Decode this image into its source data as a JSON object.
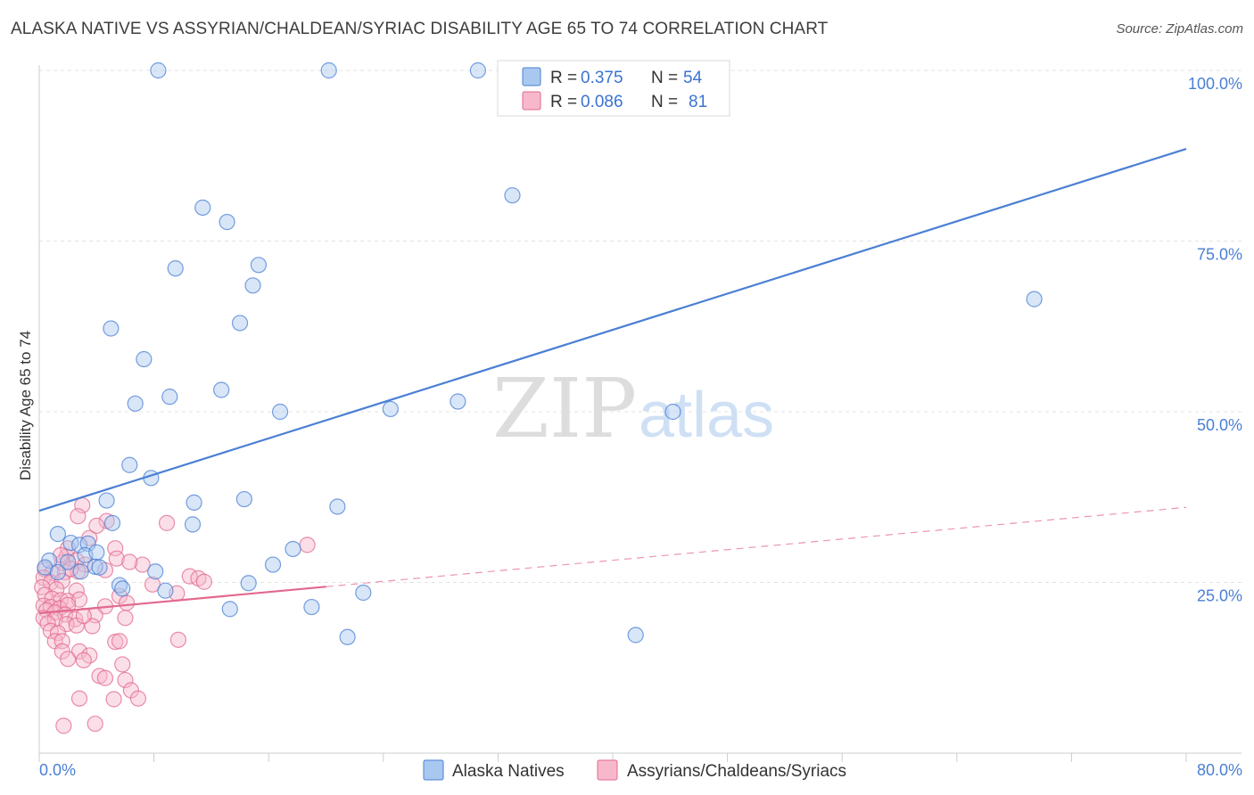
{
  "header": {
    "title": "ALASKA NATIVE VS ASSYRIAN/CHALDEAN/SYRIAC DISABILITY AGE 65 TO 74 CORRELATION CHART",
    "source": "Source: ZipAtlas.com"
  },
  "watermark": {
    "zip": "ZIP",
    "atlas": "atlas"
  },
  "legend": {
    "r_label": "R =",
    "n_label": "N =",
    "rows": [
      {
        "r": "0.375",
        "n": "54",
        "color": "#a9c8f0"
      },
      {
        "r": "0.086",
        "n": "81",
        "color": "#f7b8cb"
      }
    ]
  },
  "chart_data": {
    "type": "scatter",
    "title": "ALASKA NATIVE VS ASSYRIAN/CHALDEAN/SYRIAC DISABILITY AGE 65 TO 74 CORRELATION CHART",
    "ylabel": "Disability Age 65 to 74",
    "xlabel": "",
    "xlim": [
      0,
      80
    ],
    "ylim": [
      0,
      100
    ],
    "x_tick_labels": [
      "0.0%",
      "80.0%"
    ],
    "y_ticks": [
      25,
      50,
      75,
      100
    ],
    "y_tick_labels": [
      "25.0%",
      "50.0%",
      "75.0%",
      "100.0%"
    ],
    "grid": "horizontal dashed",
    "legend_position": "top-center",
    "series": [
      {
        "name": "Alaska Natives",
        "color": "#4a7fd4",
        "fill": "#a9c8f0",
        "r": 0.375,
        "n": 54,
        "trend": {
          "x": [
            0,
            80
          ],
          "y": [
            35.5,
            88.5
          ],
          "style": "solid"
        },
        "points": [
          [
            8.3,
            100
          ],
          [
            20.2,
            100
          ],
          [
            30.6,
            100
          ],
          [
            44.6,
            100
          ],
          [
            33.0,
            81.7
          ],
          [
            11.4,
            79.9
          ],
          [
            13.1,
            77.8
          ],
          [
            9.5,
            71.0
          ],
          [
            15.3,
            71.5
          ],
          [
            14.9,
            68.5
          ],
          [
            69.4,
            66.5
          ],
          [
            14.0,
            63.0
          ],
          [
            5.0,
            62.2
          ],
          [
            7.3,
            57.7
          ],
          [
            12.7,
            53.2
          ],
          [
            9.1,
            52.2
          ],
          [
            6.7,
            51.2
          ],
          [
            16.8,
            50.0
          ],
          [
            24.5,
            50.4
          ],
          [
            29.2,
            51.5
          ],
          [
            44.2,
            50.0
          ],
          [
            6.3,
            42.2
          ],
          [
            7.8,
            40.3
          ],
          [
            4.7,
            37.0
          ],
          [
            10.8,
            36.7
          ],
          [
            14.3,
            37.2
          ],
          [
            20.8,
            36.1
          ],
          [
            5.1,
            33.7
          ],
          [
            10.7,
            33.5
          ],
          [
            1.3,
            32.1
          ],
          [
            2.2,
            30.8
          ],
          [
            2.8,
            30.5
          ],
          [
            3.4,
            30.7
          ],
          [
            3.2,
            29.0
          ],
          [
            4.0,
            29.4
          ],
          [
            17.7,
            29.9
          ],
          [
            0.7,
            28.2
          ],
          [
            0.4,
            27.2
          ],
          [
            3.9,
            27.3
          ],
          [
            4.2,
            27.2
          ],
          [
            1.3,
            26.5
          ],
          [
            2.9,
            26.6
          ],
          [
            8.1,
            26.6
          ],
          [
            16.3,
            27.6
          ],
          [
            5.6,
            24.6
          ],
          [
            5.8,
            24.1
          ],
          [
            8.8,
            23.8
          ],
          [
            14.6,
            24.9
          ],
          [
            22.6,
            23.5
          ],
          [
            13.3,
            21.1
          ],
          [
            19.0,
            21.4
          ],
          [
            21.5,
            17.0
          ],
          [
            41.6,
            17.3
          ],
          [
            2.0,
            28.0
          ]
        ]
      },
      {
        "name": "Assyrians/Chaldeans/Syriacs",
        "color": "#e2698e",
        "fill": "#f7b8cb",
        "r": 0.086,
        "n": 81,
        "trend": {
          "x": [
            0,
            80
          ],
          "y": [
            20.5,
            36.0
          ],
          "style": "solid to x=20, dashed after"
        },
        "points": [
          [
            3.0,
            36.3
          ],
          [
            4.7,
            34.0
          ],
          [
            2.7,
            34.7
          ],
          [
            8.9,
            33.7
          ],
          [
            18.7,
            30.5
          ],
          [
            5.3,
            30.0
          ],
          [
            1.9,
            28.8
          ],
          [
            2.6,
            28.2
          ],
          [
            5.4,
            28.5
          ],
          [
            1.6,
            27.9
          ],
          [
            3.2,
            27.6
          ],
          [
            7.2,
            27.6
          ],
          [
            0.4,
            26.9
          ],
          [
            0.9,
            26.4
          ],
          [
            1.8,
            26.5
          ],
          [
            2.7,
            26.6
          ],
          [
            4.6,
            26.8
          ],
          [
            0.3,
            25.7
          ],
          [
            0.8,
            25.0
          ],
          [
            1.6,
            25.2
          ],
          [
            10.5,
            25.9
          ],
          [
            11.1,
            25.6
          ],
          [
            11.5,
            25.1
          ],
          [
            0.2,
            24.3
          ],
          [
            1.2,
            24.0
          ],
          [
            2.6,
            23.8
          ],
          [
            9.6,
            23.4
          ],
          [
            0.4,
            23.2
          ],
          [
            0.9,
            22.6
          ],
          [
            1.5,
            22.4
          ],
          [
            2.0,
            22.3
          ],
          [
            2.8,
            22.5
          ],
          [
            5.6,
            23.0
          ],
          [
            0.3,
            21.6
          ],
          [
            0.8,
            21.4
          ],
          [
            1.4,
            21.2
          ],
          [
            2.0,
            21.7
          ],
          [
            4.6,
            21.5
          ],
          [
            0.5,
            20.9
          ],
          [
            1.1,
            20.6
          ],
          [
            1.8,
            20.3
          ],
          [
            3.9,
            20.2
          ],
          [
            0.3,
            19.8
          ],
          [
            1.1,
            19.6
          ],
          [
            2.5,
            19.6
          ],
          [
            6.0,
            19.8
          ],
          [
            0.6,
            19.0
          ],
          [
            1.9,
            18.9
          ],
          [
            2.6,
            18.7
          ],
          [
            3.7,
            18.6
          ],
          [
            0.8,
            17.9
          ],
          [
            1.3,
            17.6
          ],
          [
            1.1,
            16.4
          ],
          [
            1.6,
            16.4
          ],
          [
            5.3,
            16.3
          ],
          [
            5.6,
            16.4
          ],
          [
            9.7,
            16.6
          ],
          [
            1.6,
            14.9
          ],
          [
            2.8,
            14.9
          ],
          [
            3.5,
            14.3
          ],
          [
            2.0,
            13.8
          ],
          [
            3.1,
            13.6
          ],
          [
            5.8,
            13.0
          ],
          [
            4.2,
            11.3
          ],
          [
            4.6,
            11.0
          ],
          [
            6.0,
            10.7
          ],
          [
            6.4,
            9.2
          ],
          [
            6.9,
            8.0
          ],
          [
            2.8,
            8.0
          ],
          [
            5.2,
            7.9
          ],
          [
            1.7,
            4.0
          ],
          [
            3.9,
            4.3
          ],
          [
            2.0,
            30.0
          ],
          [
            3.5,
            31.5
          ],
          [
            4.0,
            33.3
          ],
          [
            6.1,
            22.0
          ],
          [
            7.9,
            24.7
          ],
          [
            3.1,
            20.1
          ],
          [
            6.3,
            28.0
          ],
          [
            2.2,
            27.0
          ],
          [
            1.5,
            29.0
          ]
        ]
      }
    ]
  },
  "bottom_legend": [
    {
      "label": "Alaska Natives",
      "color": "#a9c8f0",
      "stroke": "#4a7fd4"
    },
    {
      "label": "Assyrians/Chaldeans/Syriacs",
      "color": "#f7b8cb",
      "stroke": "#e2698e"
    }
  ]
}
